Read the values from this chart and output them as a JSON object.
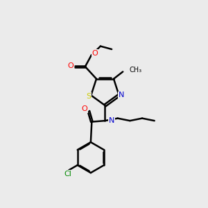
{
  "bg_color": "#ebebeb",
  "line_color": "#000000",
  "bond_lw": 1.8,
  "dbo": 0.055,
  "atom_colors": {
    "O": "#ff0000",
    "N": "#0000cc",
    "S": "#cccc00",
    "Cl": "#008800",
    "C": "#000000"
  },
  "xlim": [
    0,
    10
  ],
  "ylim": [
    0,
    10
  ]
}
